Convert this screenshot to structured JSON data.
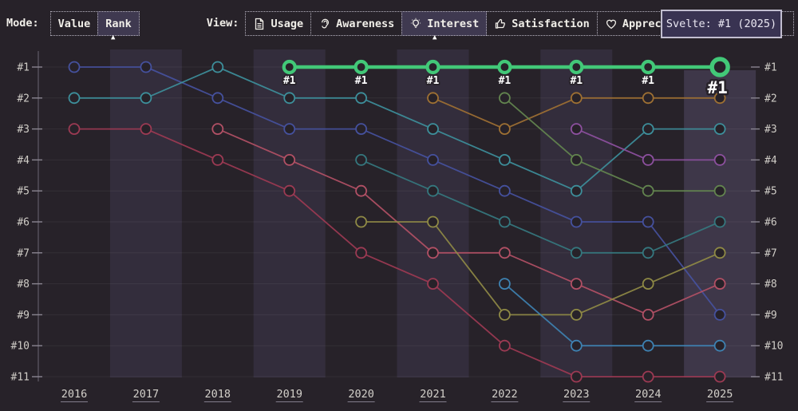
{
  "header": {
    "mode_label": "Mode:",
    "mode_options": [
      {
        "label": "Value",
        "selected": false
      },
      {
        "label": "Rank",
        "selected": true
      }
    ],
    "view_label": "View:",
    "view_options": [
      {
        "label": "Usage",
        "icon": "file-text-icon",
        "selected": false
      },
      {
        "label": "Awareness",
        "icon": "ear-icon",
        "selected": false
      },
      {
        "label": "Interest",
        "icon": "lightbulb-icon",
        "selected": true
      },
      {
        "label": "Satisfaction",
        "icon": "thumbs-up-icon",
        "selected": false
      },
      {
        "label": "Appreciation",
        "icon": "heart-icon",
        "selected": false
      }
    ],
    "caret": "▲",
    "tooltip": "Svelte: #1 (2025)"
  },
  "colors": {
    "background": "#272229",
    "band": "#332d3c",
    "band_highlight": "#3e3749",
    "grid": "rgba(255,255,255,0.06)",
    "axis": "#6b6573",
    "tick": "#8a8591",
    "axis_label": "#cfccc6",
    "year_label": "#d3d0ca",
    "year_underline": "#827d8c",
    "point_fill": "#272229",
    "point_label_text": "#ffffff",
    "point_label_outline": "#272229",
    "accent": "#42c878"
  },
  "chart_data": {
    "type": "line",
    "subtype": "bump-rank-chart",
    "x_labels": [
      "2016",
      "2017",
      "2018",
      "2019",
      "2020",
      "2021",
      "2022",
      "2023",
      "2024",
      "2025"
    ],
    "rank_labels": [
      "#1",
      "#2",
      "#3",
      "#4",
      "#5",
      "#6",
      "#7",
      "#8",
      "#9",
      "#10",
      "#11"
    ],
    "ylim": [
      1,
      11
    ],
    "grid": true,
    "light_band_years": [
      "2017",
      "2019",
      "2021",
      "2023"
    ],
    "highlighted_year": "2025",
    "series": [
      {
        "name": "Svelte",
        "color": "#42c878",
        "highlight": true,
        "point_label": "#1",
        "ranks": [
          null,
          null,
          null,
          1,
          1,
          1,
          1,
          1,
          1,
          1
        ]
      },
      {
        "name": "series-indigo",
        "color": "#45519e",
        "highlight": false,
        "ranks": [
          1,
          1,
          2,
          3,
          3,
          4,
          5,
          6,
          6,
          9
        ]
      },
      {
        "name": "series-teal",
        "color": "#3d8f9b",
        "highlight": false,
        "ranks": [
          2,
          2,
          1,
          2,
          2,
          3,
          4,
          5,
          3,
          3
        ]
      },
      {
        "name": "series-maroon",
        "color": "#9c3a53",
        "highlight": false,
        "ranks": [
          3,
          3,
          4,
          5,
          7,
          8,
          10,
          11,
          11,
          11
        ]
      },
      {
        "name": "series-red",
        "color": "#b25065",
        "highlight": false,
        "ranks": [
          null,
          null,
          3,
          4,
          5,
          7,
          7,
          8,
          9,
          8
        ]
      },
      {
        "name": "series-darkteal",
        "color": "#35787f",
        "highlight": false,
        "ranks": [
          null,
          null,
          null,
          null,
          4,
          5,
          6,
          7,
          7,
          6
        ]
      },
      {
        "name": "series-olive",
        "color": "#8f8a45",
        "highlight": false,
        "ranks": [
          null,
          null,
          null,
          null,
          6,
          6,
          9,
          9,
          8,
          7
        ]
      },
      {
        "name": "series-tan",
        "color": "#9e7033",
        "highlight": false,
        "ranks": [
          null,
          null,
          null,
          null,
          null,
          2,
          3,
          2,
          2,
          2
        ]
      },
      {
        "name": "series-green",
        "color": "#63854f",
        "highlight": false,
        "ranks": [
          null,
          null,
          null,
          null,
          null,
          null,
          2,
          4,
          5,
          5
        ]
      },
      {
        "name": "series-steelblue",
        "color": "#3e82b2",
        "highlight": false,
        "ranks": [
          null,
          null,
          null,
          null,
          null,
          null,
          8,
          10,
          10,
          10
        ]
      },
      {
        "name": "series-purple",
        "color": "#8d509f",
        "highlight": false,
        "ranks": [
          null,
          null,
          null,
          null,
          null,
          null,
          null,
          3,
          4,
          4
        ]
      }
    ]
  }
}
